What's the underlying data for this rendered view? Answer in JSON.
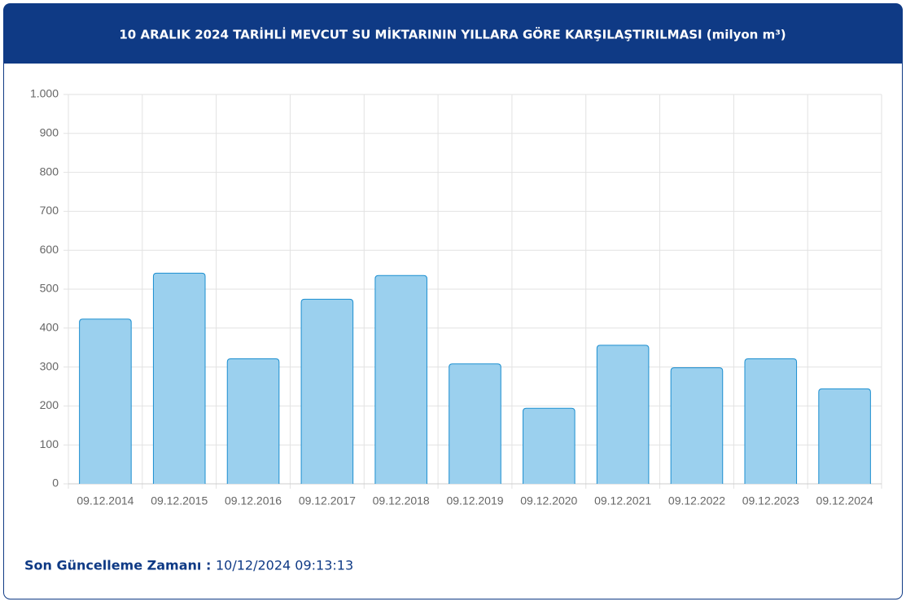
{
  "chart_data": {
    "type": "bar",
    "title": "10 ARALIK 2024 TARİHLİ MEVCUT SU MİKTARININ YILLARA GÖRE KARŞILAŞTIRILMASI (milyon m³)",
    "categories": [
      "09.12.2014",
      "09.12.2015",
      "09.12.2016",
      "09.12.2017",
      "09.12.2018",
      "09.12.2019",
      "09.12.2020",
      "09.12.2021",
      "09.12.2022",
      "09.12.2023",
      "09.12.2024"
    ],
    "values": [
      423,
      541,
      321,
      474,
      535,
      308,
      194,
      356,
      298,
      321,
      244
    ],
    "color": "#9bd0ee",
    "stroke": "#1d8fd0",
    "ylim": [
      0,
      1000
    ],
    "yticks": [
      0,
      100,
      200,
      300,
      400,
      500,
      600,
      700,
      800,
      900,
      {
        "value": 1000,
        "label": "1.000"
      }
    ],
    "grid": true
  },
  "footer": {
    "label": "Son Güncelleme Zamanı :",
    "value": "10/12/2024 09:13:13"
  }
}
